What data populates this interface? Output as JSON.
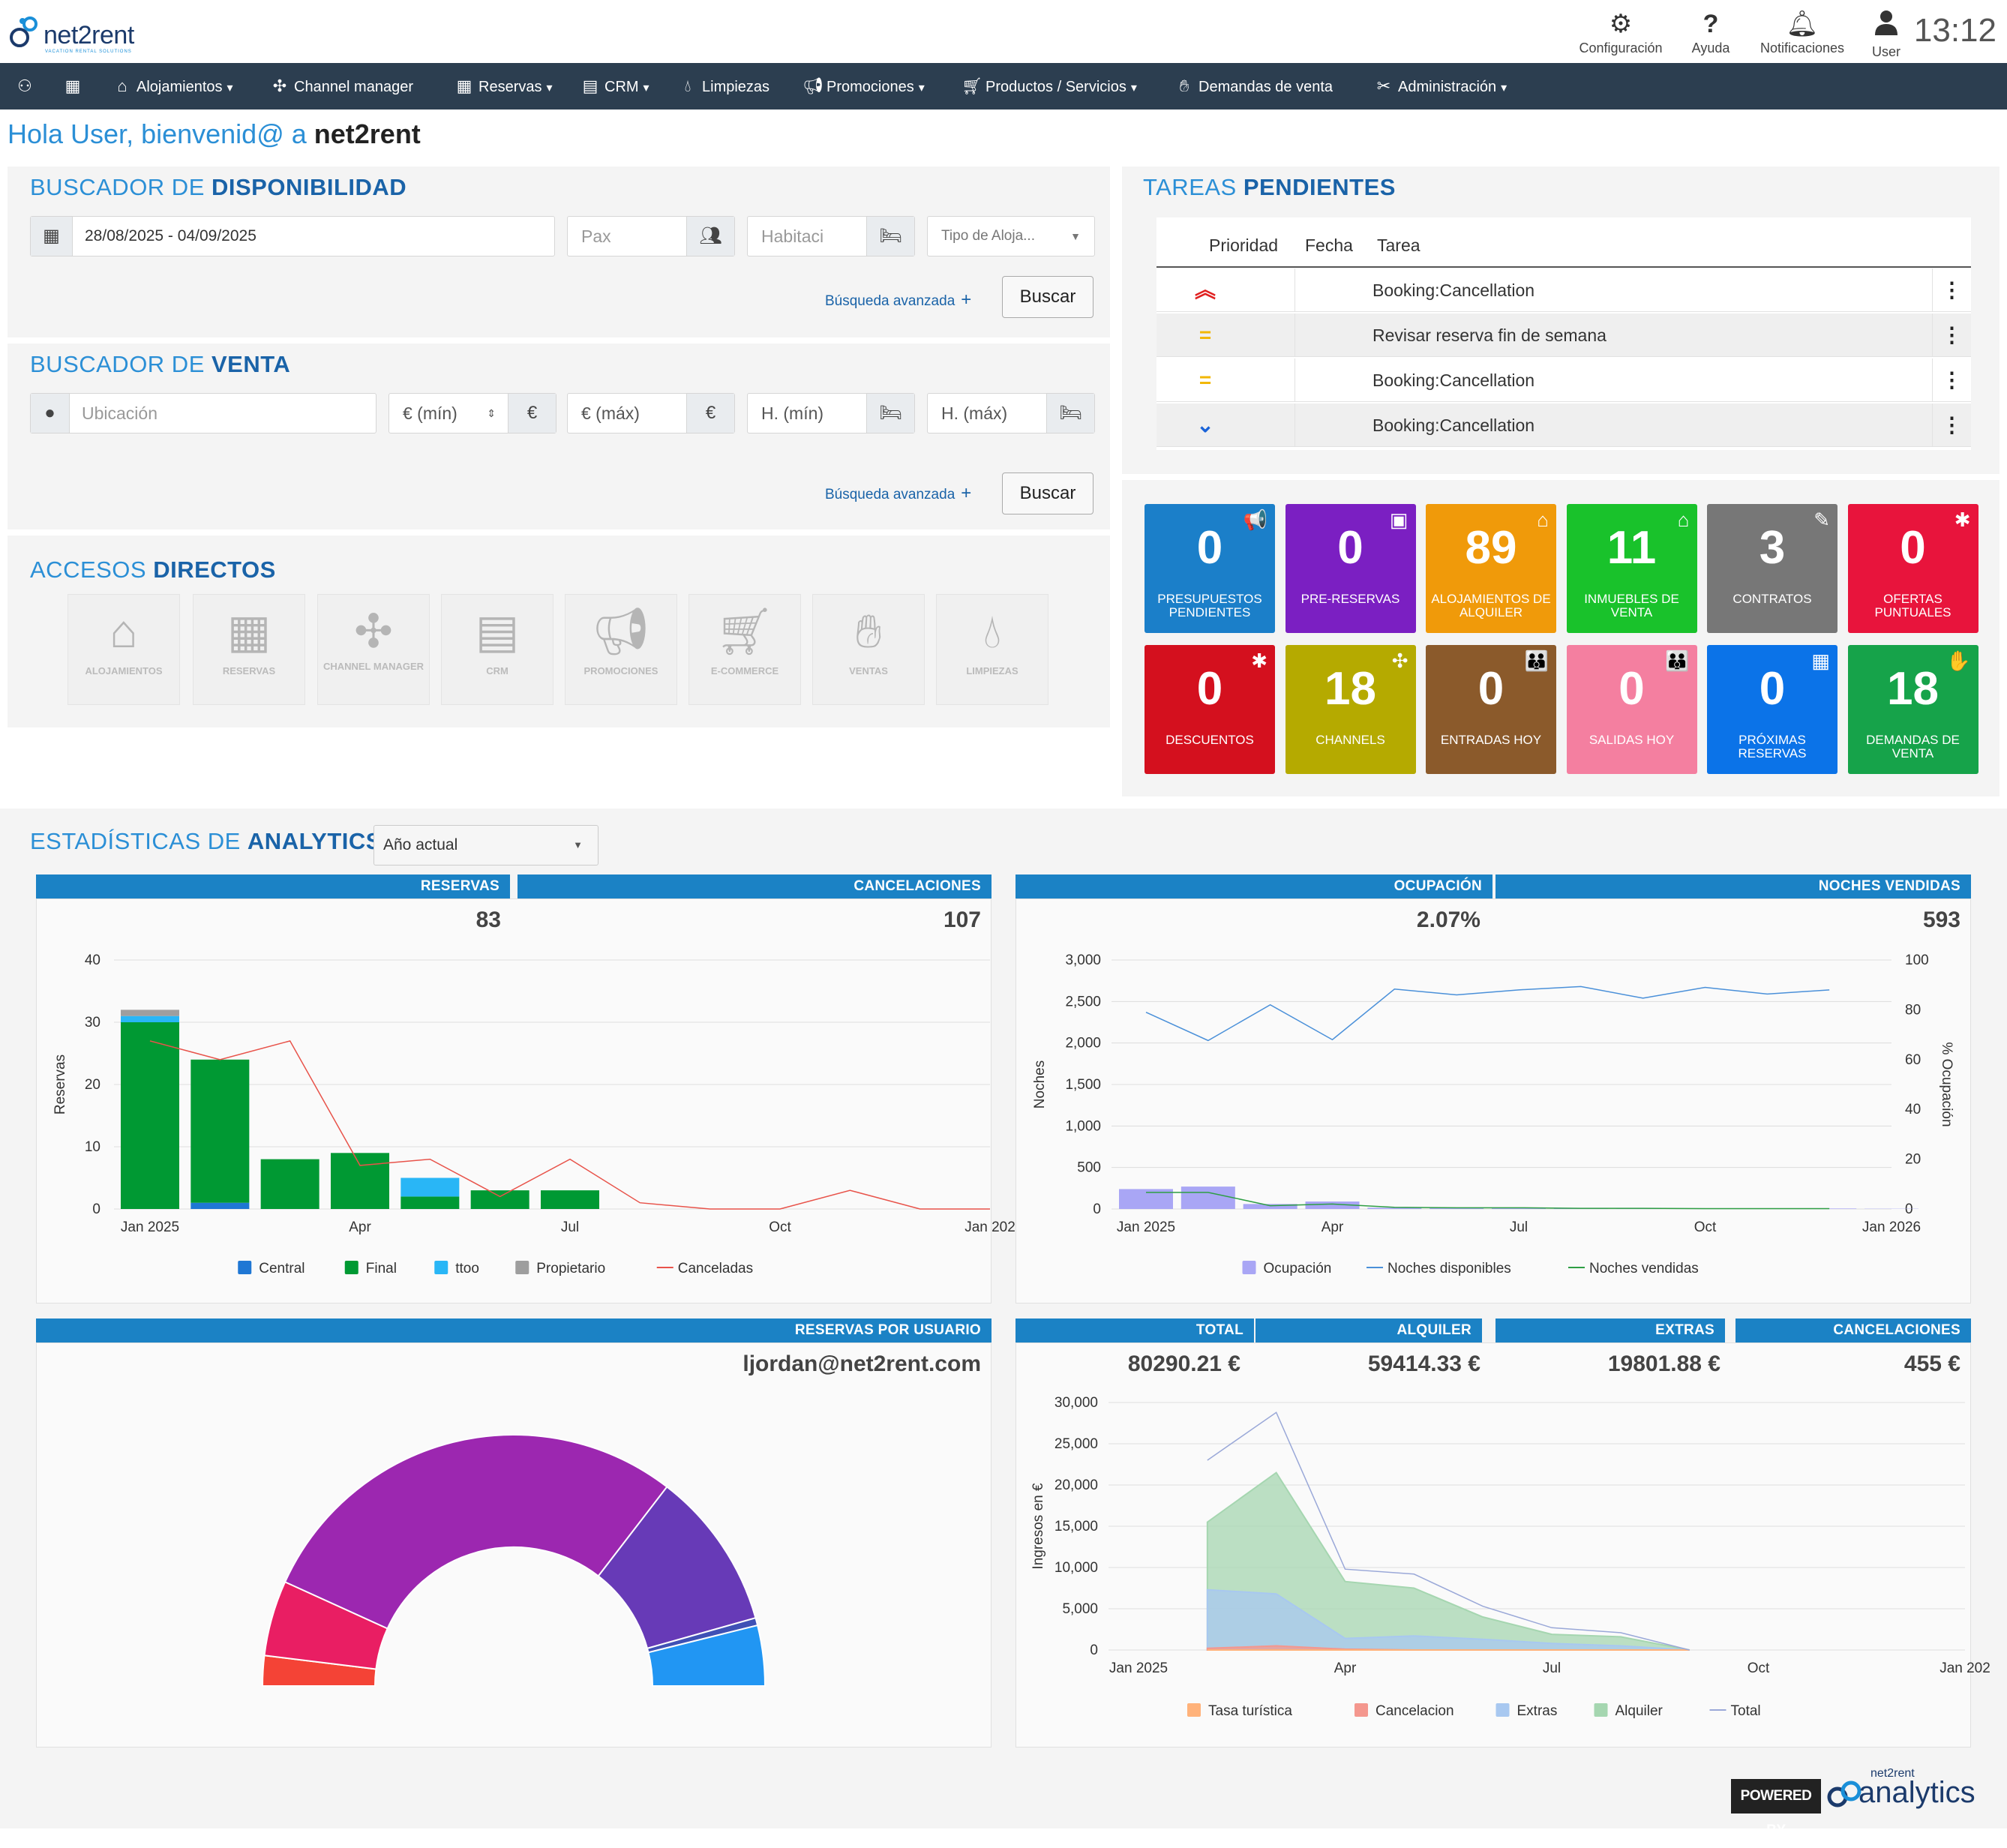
{
  "header": {
    "brand": "net2rent",
    "brand_sub": "VACATION RENTAL SOLUTIONS",
    "actions": [
      {
        "label": "Configuración",
        "icon": "gear-icon"
      },
      {
        "label": "Ayuda",
        "icon": "help-icon"
      },
      {
        "label": "Notificaciones",
        "icon": "bell-icon"
      },
      {
        "label": "User",
        "icon": "user-icon"
      }
    ],
    "clock": "13:12"
  },
  "nav": {
    "items": [
      {
        "label": "Alojamientos"
      },
      {
        "label": "Channel manager"
      },
      {
        "label": "Reservas"
      },
      {
        "label": "CRM"
      },
      {
        "label": "Limpiezas"
      },
      {
        "label": "Promociones"
      },
      {
        "label": "Productos / Servicios"
      },
      {
        "label": "Demandas de venta"
      },
      {
        "label": "Administración"
      }
    ]
  },
  "welcome": {
    "prefix": "Hola User, bienvenid@ a ",
    "brand": "net2rent"
  },
  "availability": {
    "title_light": "BUSCADOR DE ",
    "title_bold": "DISPONIBILIDAD",
    "date_value": "28/08/2025 - 04/09/2025",
    "pax_placeholder": "Pax",
    "rooms_placeholder": "Habitaci",
    "type_placeholder": "Tipo de Aloja...",
    "advanced": "Búsqueda avanzada",
    "search": "Buscar"
  },
  "sale": {
    "title_light": "BUSCADOR DE ",
    "title_bold": "VENTA",
    "location_placeholder": "Ubicación",
    "min_price": "€ (mín)",
    "max_price": "€ (máx)",
    "currency": "€",
    "min_rooms": "H. (mín)",
    "max_rooms": "H. (máx)",
    "advanced": "Búsqueda avanzada",
    "search": "Buscar"
  },
  "shortcuts": {
    "title_light": "ACCESOS ",
    "title_bold": "DIRECTOS",
    "items": [
      {
        "label": "ALOJAMIENTOS",
        "icon": "house-icon"
      },
      {
        "label": "RESERVAS",
        "icon": "calendar-icon"
      },
      {
        "label": "CHANNEL MANAGER",
        "icon": "network-icon"
      },
      {
        "label": "CRM",
        "icon": "id-card-icon"
      },
      {
        "label": "PROMOCIONES",
        "icon": "megaphone-icon"
      },
      {
        "label": "E-COMMERCE",
        "icon": "cart-icon"
      },
      {
        "label": "VENTAS",
        "icon": "hand-box-icon"
      },
      {
        "label": "LIMPIEZAS",
        "icon": "drop-icon"
      }
    ]
  },
  "tasks": {
    "title_light": "TAREAS ",
    "title_bold": "PENDIENTES",
    "columns": [
      "Prioridad",
      "Fecha",
      "Tarea"
    ],
    "rows": [
      {
        "priority": "high",
        "glyph": "︽",
        "color": "#e02020",
        "date": "",
        "task": "Booking:Cancellation"
      },
      {
        "priority": "medium",
        "glyph": "=",
        "color": "#f2b705",
        "date": "",
        "task": "Revisar reserva fin de semana"
      },
      {
        "priority": "medium",
        "glyph": "=",
        "color": "#f2b705",
        "date": "",
        "task": "Booking:Cancellation"
      },
      {
        "priority": "low",
        "glyph": "⌄",
        "color": "#1a63d8",
        "date": "",
        "task": "Booking:Cancellation"
      }
    ]
  },
  "tiles": [
    {
      "value": "0",
      "label": "PRESUPUESTOS PENDIENTES",
      "color": "#1b7fc9",
      "icon": "megaphone-icon",
      "glyph": "📢"
    },
    {
      "value": "0",
      "label": "PRE-RESERVAS",
      "color": "#7b1fc2",
      "icon": "calendar-arrow-icon",
      "glyph": "▣"
    },
    {
      "value": "89",
      "label": "ALOJAMIENTOS DE ALQUILER",
      "color": "#f09a0a",
      "icon": "house-icon",
      "glyph": "⌂"
    },
    {
      "value": "11",
      "label": "INMUEBLES DE VENTA",
      "color": "#19c22b",
      "icon": "house-icon",
      "glyph": "⌂"
    },
    {
      "value": "3",
      "label": "CONTRATOS",
      "color": "#777777",
      "icon": "contract-icon",
      "glyph": "✎"
    },
    {
      "value": "0",
      "label": "OFERTAS PUNTUALES",
      "color": "#e8143c",
      "icon": "badge-icon",
      "glyph": "✱"
    },
    {
      "value": "0",
      "label": "DESCUENTOS",
      "color": "#d4101e",
      "icon": "discount-badge-icon",
      "glyph": "✱"
    },
    {
      "value": "18",
      "label": "CHANNELS",
      "color": "#b5aa00",
      "icon": "network-icon",
      "glyph": "✣"
    },
    {
      "value": "0",
      "label": "ENTRADAS HOY",
      "color": "#8b5a2b",
      "icon": "people-icon",
      "glyph": "👪"
    },
    {
      "value": "0",
      "label": "SALIDAS HOY",
      "color": "#f47fa0",
      "icon": "people-icon",
      "glyph": "👪"
    },
    {
      "value": "0",
      "label": "PRÓXIMAS RESERVAS",
      "color": "#0b73e8",
      "icon": "calendar-icon",
      "glyph": "▦"
    },
    {
      "value": "18",
      "label": "DEMANDAS DE VENTA",
      "color": "#16a34a",
      "icon": "hand-box-icon",
      "glyph": "✋"
    }
  ],
  "analytics": {
    "title_light": "ESTADÍSTICAS DE ",
    "title_bold": "ANALYTICS",
    "period": "Año actual",
    "kpis_top_left": [
      {
        "label": "RESERVAS",
        "value": "83"
      },
      {
        "label": "CANCELACIONES",
        "value": "107"
      }
    ],
    "kpis_top_right": [
      {
        "label": "OCUPACIÓN",
        "value": "2.07%"
      },
      {
        "label": "NOCHES VENDIDAS",
        "value": "593"
      }
    ],
    "users_card": {
      "label": "RESERVAS POR USUARIO",
      "value": "ljordan@net2rent.com"
    },
    "kpis_bottom_right": [
      {
        "label": "TOTAL",
        "value": "80290.21 €"
      },
      {
        "label": "ALQUILER",
        "value": "59414.33 €"
      },
      {
        "label": "EXTRAS",
        "value": "19801.88 €"
      },
      {
        "label": "CANCELACIONES",
        "value": "455 €"
      }
    ],
    "powered_by": "POWERED BY",
    "powered_brand": "analytics",
    "powered_brand_top": "net2rent"
  },
  "chart_data": [
    {
      "type": "bar",
      "id": "reservas",
      "ylabel": "Reservas",
      "ylim": [
        0,
        40
      ],
      "yticks": [
        "0",
        "10",
        "20",
        "30",
        "40"
      ],
      "xticks": [
        "Jan 2025",
        "Apr",
        "Jul",
        "Oct",
        "Jan 202"
      ],
      "x": [
        "Jan 2025",
        "Feb 2025",
        "Mar 2025",
        "Apr 2025",
        "May 2025",
        "Jun 2025",
        "Jul 2025",
        "Aug 2025",
        "Sep 2025",
        "Oct 2025",
        "Nov 2025",
        "Dec 2025",
        "Jan 2026"
      ],
      "series": [
        {
          "name": "Central",
          "color": "#1f77d4",
          "values": [
            0,
            1,
            0,
            0,
            0,
            0,
            0,
            0,
            0,
            0,
            0,
            0,
            0
          ]
        },
        {
          "name": "Final",
          "color": "#009933",
          "values": [
            30,
            23,
            8,
            9,
            2,
            3,
            3,
            0,
            0,
            0,
            0,
            0,
            0
          ]
        },
        {
          "name": "ttoo",
          "color": "#29b6f6",
          "values": [
            1,
            0,
            0,
            0,
            3,
            0,
            0,
            0,
            0,
            0,
            0,
            0,
            0
          ]
        },
        {
          "name": "Propietario",
          "color": "#9e9e9e",
          "values": [
            1,
            0,
            0,
            0,
            0,
            0,
            0,
            0,
            0,
            0,
            0,
            0,
            0
          ]
        }
      ],
      "line": {
        "name": "Canceladas",
        "color": "#e8534a",
        "values": [
          27,
          24,
          27,
          7,
          8,
          2,
          8,
          1,
          0,
          0,
          3,
          0,
          0
        ]
      }
    },
    {
      "type": "bar",
      "id": "ocupacion",
      "ylabel": "Noches",
      "y2label": "% Ocupación",
      "ylim": [
        0,
        3000
      ],
      "y2lim": [
        0,
        100
      ],
      "yticks": [
        "0",
        "500",
        "1,000",
        "1,500",
        "2,000",
        "2,500",
        "3,000"
      ],
      "y2ticks": [
        "0",
        "20",
        "40",
        "60",
        "80",
        "100"
      ],
      "xticks": [
        "Jan 2025",
        "Apr",
        "Jul",
        "Oct",
        "Jan 2026"
      ],
      "x": [
        "Jan 2025",
        "Feb 2025",
        "Mar 2025",
        "Apr 2025",
        "May 2025",
        "Jun 2025",
        "Jul 2025",
        "Aug 2025",
        "Sep 2025",
        "Oct 2025",
        "Nov 2025",
        "Dec 2025",
        "Jan 2026"
      ],
      "series": [
        {
          "name": "Ocupación",
          "color": "#a9a6f5",
          "values": [
            8,
            9,
            2,
            3,
            0.5,
            0.5,
            0.5,
            0.3,
            0.3,
            0.2,
            0.2,
            0.2,
            0.1
          ]
        }
      ],
      "lines": [
        {
          "name": "Noches disponibles",
          "color": "#4a90d9",
          "values": [
            2370,
            2030,
            2460,
            2040,
            2650,
            2580,
            2640,
            2680,
            2540,
            2670,
            2590,
            2640,
            null
          ]
        },
        {
          "name": "Noches vendidas",
          "color": "#2e9e44",
          "values": [
            200,
            200,
            40,
            60,
            20,
            15,
            15,
            8,
            8,
            5,
            5,
            5,
            null
          ]
        }
      ]
    },
    {
      "type": "pie",
      "id": "reservas-por-usuario",
      "subtype": "semi-donut",
      "slices": [
        {
          "value": 4,
          "color": "#f44336"
        },
        {
          "value": 10,
          "color": "#e91e63"
        },
        {
          "value": 59,
          "color": "#9c27b0"
        },
        {
          "value": 21,
          "color": "#673ab7"
        },
        {
          "value": 1,
          "color": "#3f51b5"
        },
        {
          "value": 8,
          "color": "#2196f3"
        }
      ]
    },
    {
      "type": "area",
      "id": "ingresos",
      "ylabel": "Ingresos en €",
      "ylim": [
        0,
        30000
      ],
      "yticks": [
        "0",
        "5,000",
        "10,000",
        "15,000",
        "20,000",
        "25,000",
        "30,000"
      ],
      "xticks": [
        "Jan 2025",
        "Apr",
        "Jul",
        "Oct",
        "Jan 202"
      ],
      "x": [
        "Feb 2025",
        "Mar 2025",
        "Apr 2025",
        "May 2025",
        "Jun 2025",
        "Jul 2025",
        "Aug 2025",
        "Sep 2025"
      ],
      "series": [
        {
          "name": "Tasa turística",
          "color": "#ffb27a",
          "values": [
            0,
            0,
            0,
            0,
            0,
            0,
            0,
            0
          ]
        },
        {
          "name": "Cancelacion",
          "color": "#f4978e",
          "values": [
            200,
            500,
            100,
            0,
            0,
            0,
            0,
            0
          ]
        },
        {
          "name": "Extras",
          "color": "#a8c8f0",
          "values": [
            7300,
            6800,
            1400,
            1700,
            1300,
            800,
            500,
            0
          ]
        },
        {
          "name": "Alquiler",
          "color": "#a5d6b0",
          "values": [
            15500,
            21500,
            8300,
            7500,
            4000,
            1900,
            1600,
            0
          ]
        },
        {
          "name": "Total",
          "color": "#9aa8d8",
          "values": [
            23000,
            28800,
            9800,
            9200,
            5300,
            2700,
            2100,
            0
          ]
        }
      ]
    }
  ]
}
